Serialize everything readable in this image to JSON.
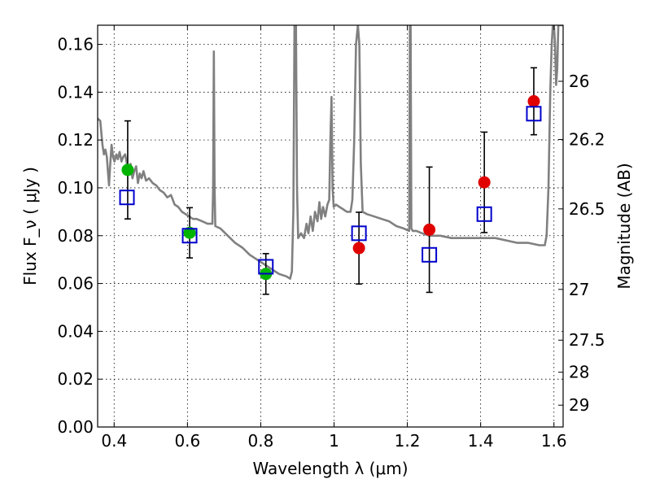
{
  "chart_data": {
    "type": "scatter",
    "title": "",
    "xlabel": "Wavelength λ (μm)",
    "ylabel": "Flux F_ν ( μJy )",
    "y2label": "Magnitude (AB)",
    "xlim": [
      0.355,
      1.625
    ],
    "ylim": [
      0.0,
      0.168
    ],
    "x_ticks": [
      0.4,
      0.6,
      0.8,
      1.0,
      1.2,
      1.4,
      1.6
    ],
    "x_tick_labels": [
      "0.4",
      "0.6",
      "0.8",
      "1",
      "1.2",
      "1.4",
      "1.6"
    ],
    "y_ticks": [
      0.0,
      0.02,
      0.04,
      0.06,
      0.08,
      0.1,
      0.12,
      0.14,
      0.16
    ],
    "y_tick_labels": [
      "0.00",
      "0.02",
      "0.04",
      "0.06",
      "0.08",
      "0.10",
      "0.12",
      "0.14",
      "0.16"
    ],
    "y2_ticks": [
      {
        "label": "26",
        "mag": 26.0
      },
      {
        "label": "26.2",
        "mag": 26.2
      },
      {
        "label": "26.5",
        "mag": 26.5
      },
      {
        "label": "27",
        "mag": 27.0
      },
      {
        "label": "27.5",
        "mag": 27.5
      },
      {
        "label": "28",
        "mag": 28.0
      },
      {
        "label": "29",
        "mag": 29.0
      }
    ],
    "grid": true,
    "colors": {
      "spectrum": "#808080",
      "green": "#00b400",
      "red": "#e00000",
      "model_box": "#0000cc",
      "errorbar": "#000000"
    },
    "spectrum": [
      [
        0.355,
        0.129
      ],
      [
        0.362,
        0.128
      ],
      [
        0.368,
        0.118
      ],
      [
        0.372,
        0.114
      ],
      [
        0.376,
        0.116
      ],
      [
        0.38,
        0.113
      ],
      [
        0.383,
        0.107
      ],
      [
        0.386,
        0.101
      ],
      [
        0.389,
        0.109
      ],
      [
        0.393,
        0.118
      ],
      [
        0.397,
        0.113
      ],
      [
        0.401,
        0.111
      ],
      [
        0.406,
        0.114
      ],
      [
        0.41,
        0.112
      ],
      [
        0.415,
        0.115
      ],
      [
        0.42,
        0.111
      ],
      [
        0.425,
        0.113
      ],
      [
        0.43,
        0.114
      ],
      [
        0.435,
        0.11
      ],
      [
        0.44,
        0.107
      ],
      [
        0.445,
        0.11
      ],
      [
        0.45,
        0.104
      ],
      [
        0.455,
        0.107
      ],
      [
        0.46,
        0.109
      ],
      [
        0.465,
        0.102
      ],
      [
        0.47,
        0.106
      ],
      [
        0.475,
        0.104
      ],
      [
        0.48,
        0.107
      ],
      [
        0.487,
        0.103
      ],
      [
        0.495,
        0.104
      ],
      [
        0.505,
        0.102
      ],
      [
        0.515,
        0.101
      ],
      [
        0.525,
        0.099
      ],
      [
        0.535,
        0.098
      ],
      [
        0.545,
        0.096
      ],
      [
        0.555,
        0.097
      ],
      [
        0.565,
        0.093
      ],
      [
        0.575,
        0.092
      ],
      [
        0.585,
        0.09
      ],
      [
        0.595,
        0.089
      ],
      [
        0.605,
        0.088
      ],
      [
        0.615,
        0.087
      ],
      [
        0.625,
        0.087
      ],
      [
        0.64,
        0.086
      ],
      [
        0.655,
        0.085
      ],
      [
        0.668,
        0.085
      ],
      [
        0.67,
        0.1
      ],
      [
        0.672,
        0.157
      ],
      [
        0.674,
        0.1
      ],
      [
        0.676,
        0.084
      ],
      [
        0.69,
        0.083
      ],
      [
        0.71,
        0.08
      ],
      [
        0.73,
        0.077
      ],
      [
        0.75,
        0.075
      ],
      [
        0.77,
        0.072
      ],
      [
        0.79,
        0.07
      ],
      [
        0.81,
        0.068
      ],
      [
        0.83,
        0.066
      ],
      [
        0.85,
        0.064
      ],
      [
        0.87,
        0.063
      ],
      [
        0.88,
        0.062
      ],
      [
        0.885,
        0.065
      ],
      [
        0.889,
        0.09
      ],
      [
        0.892,
        0.168
      ],
      [
        0.896,
        0.168
      ],
      [
        0.899,
        0.1
      ],
      [
        0.902,
        0.079
      ],
      [
        0.91,
        0.081
      ],
      [
        0.918,
        0.079
      ],
      [
        0.925,
        0.085
      ],
      [
        0.93,
        0.081
      ],
      [
        0.936,
        0.088
      ],
      [
        0.942,
        0.082
      ],
      [
        0.948,
        0.09
      ],
      [
        0.955,
        0.086
      ],
      [
        0.96,
        0.094
      ],
      [
        0.965,
        0.087
      ],
      [
        0.97,
        0.092
      ],
      [
        0.976,
        0.088
      ],
      [
        0.982,
        0.093
      ],
      [
        0.987,
        0.095
      ],
      [
        0.99,
        0.12
      ],
      [
        0.993,
        0.138
      ],
      [
        0.996,
        0.1
      ],
      [
        0.999,
        0.092
      ],
      [
        1.005,
        0.093
      ],
      [
        1.015,
        0.092
      ],
      [
        1.025,
        0.091
      ],
      [
        1.035,
        0.09
      ],
      [
        1.045,
        0.09
      ],
      [
        1.05,
        0.095
      ],
      [
        1.055,
        0.12
      ],
      [
        1.06,
        0.16
      ],
      [
        1.065,
        0.168
      ],
      [
        1.069,
        0.16
      ],
      [
        1.073,
        0.11
      ],
      [
        1.078,
        0.09
      ],
      [
        1.09,
        0.089
      ],
      [
        1.11,
        0.088
      ],
      [
        1.13,
        0.087
      ],
      [
        1.15,
        0.086
      ],
      [
        1.17,
        0.084
      ],
      [
        1.19,
        0.083
      ],
      [
        1.205,
        0.082
      ],
      [
        1.207,
        0.168
      ],
      [
        1.209,
        0.168
      ],
      [
        1.211,
        0.083
      ],
      [
        1.215,
        0.082
      ],
      [
        1.225,
        0.082
      ],
      [
        1.24,
        0.081
      ],
      [
        1.26,
        0.08
      ],
      [
        1.29,
        0.08
      ],
      [
        1.32,
        0.079
      ],
      [
        1.35,
        0.079
      ],
      [
        1.38,
        0.079
      ],
      [
        1.41,
        0.079
      ],
      [
        1.44,
        0.079
      ],
      [
        1.47,
        0.078
      ],
      [
        1.5,
        0.077
      ],
      [
        1.53,
        0.077
      ],
      [
        1.56,
        0.076
      ],
      [
        1.575,
        0.076
      ],
      [
        1.58,
        0.08
      ],
      [
        1.585,
        0.1
      ],
      [
        1.59,
        0.14
      ],
      [
        1.594,
        0.16
      ],
      [
        1.597,
        0.168
      ],
      [
        1.6,
        0.168
      ],
      [
        1.603,
        0.16
      ],
      [
        1.606,
        0.143
      ],
      [
        1.609,
        0.15
      ],
      [
        1.612,
        0.168
      ],
      [
        1.625,
        0.168
      ]
    ],
    "observed": [
      {
        "x": 0.437,
        "y": 0.1075,
        "err": 0.0205,
        "color": "green"
      },
      {
        "x": 0.606,
        "y": 0.0812,
        "err": 0.0105,
        "color": "green"
      },
      {
        "x": 0.814,
        "y": 0.064,
        "err": 0.0085,
        "color": "green"
      },
      {
        "x": 1.068,
        "y": 0.0748,
        "err": 0.015,
        "color": "red"
      },
      {
        "x": 1.26,
        "y": 0.0825,
        "err": 0.0262,
        "color": "red"
      },
      {
        "x": 1.41,
        "y": 0.1023,
        "err": 0.021,
        "color": "red"
      },
      {
        "x": 1.545,
        "y": 0.1362,
        "err": 0.014,
        "color": "red"
      }
    ],
    "model": [
      {
        "x": 0.435,
        "y": 0.096
      },
      {
        "x": 0.606,
        "y": 0.08
      },
      {
        "x": 0.814,
        "y": 0.067
      },
      {
        "x": 1.068,
        "y": 0.081
      },
      {
        "x": 1.26,
        "y": 0.072
      },
      {
        "x": 1.41,
        "y": 0.089
      },
      {
        "x": 1.545,
        "y": 0.131
      }
    ]
  }
}
